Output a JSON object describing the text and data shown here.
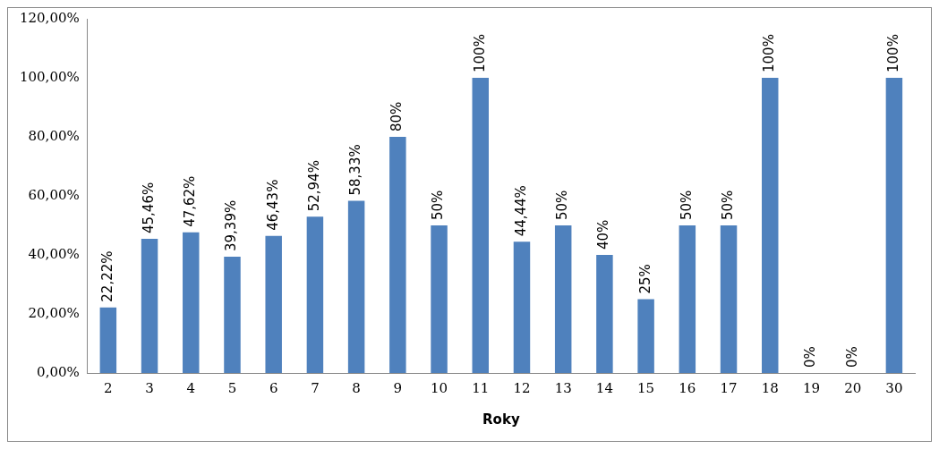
{
  "chart_data": {
    "type": "bar",
    "xlabel": "Roky",
    "categories": [
      "2",
      "3",
      "4",
      "5",
      "6",
      "7",
      "8",
      "9",
      "10",
      "11",
      "12",
      "13",
      "14",
      "15",
      "16",
      "17",
      "18",
      "19",
      "20",
      "30"
    ],
    "values": [
      22.22,
      45.46,
      47.62,
      39.39,
      46.43,
      52.94,
      58.33,
      80,
      50,
      100,
      44.44,
      50,
      40,
      25,
      50,
      50,
      100,
      0,
      0,
      100
    ],
    "value_labels": [
      "22,22%",
      "45,46%",
      "47,62%",
      "39,39%",
      "46,43%",
      "52,94%",
      "58,33%",
      "80%",
      "50%",
      "100%",
      "44,44%",
      "50%",
      "40%",
      "25%",
      "50%",
      "50%",
      "100%",
      "0%",
      "0%",
      "100%"
    ],
    "color": "#4f81bd",
    "ylim": [
      0,
      120
    ],
    "yticks": [
      {
        "value": 0,
        "label": "0,00%"
      },
      {
        "value": 20,
        "label": "20,00%"
      },
      {
        "value": 40,
        "label": "40,00%"
      },
      {
        "value": 60,
        "label": "60,00%"
      },
      {
        "value": 80,
        "label": "80,00%"
      },
      {
        "value": 100,
        "label": "100,00%"
      },
      {
        "value": 120,
        "label": "120,00%"
      }
    ],
    "grid": false,
    "legend": false
  }
}
